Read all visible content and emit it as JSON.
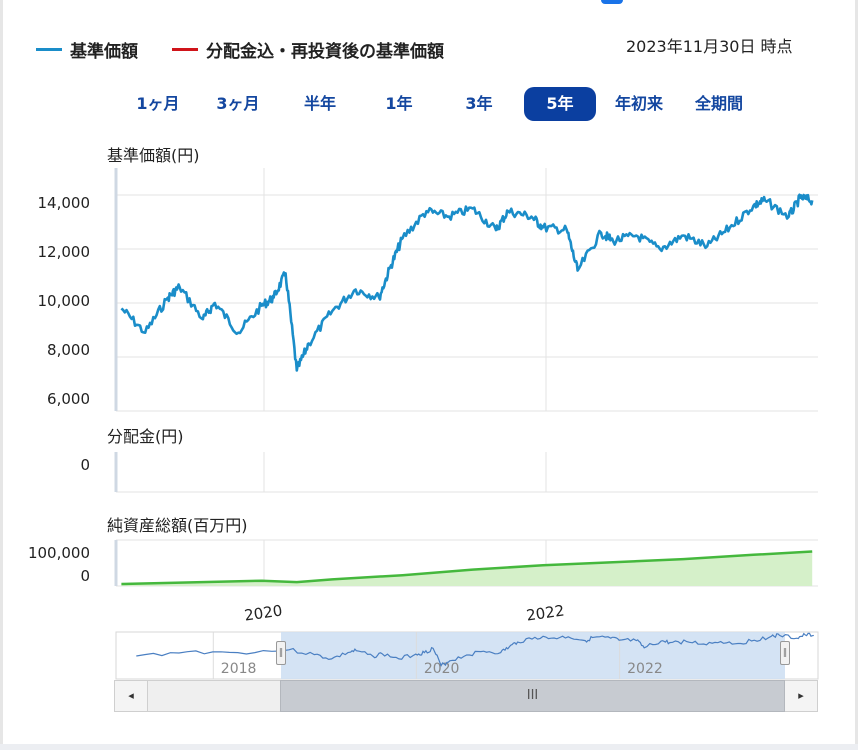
{
  "legend": {
    "nav_label": "基準価額",
    "nav_color": "#1a8dc9",
    "reinvested_label": "分配金込・再投資後の基準価額",
    "reinvested_color": "#d0141a"
  },
  "as_of": "2023年11月30日 時点",
  "periods": [
    {
      "label": "1ヶ月",
      "active": false
    },
    {
      "label": "3ヶ月",
      "active": false
    },
    {
      "label": "半年",
      "active": false
    },
    {
      "label": "1年",
      "active": false
    },
    {
      "label": "3年",
      "active": false
    },
    {
      "label": "5年",
      "active": true
    },
    {
      "label": "年初来",
      "active": false
    },
    {
      "label": "全期間",
      "active": false
    }
  ],
  "panels": {
    "nav_title": "基準価額(円)",
    "dist_title": "分配金(円)",
    "assets_title": "純資産総額(百万円)"
  },
  "navigator": {
    "year_labels": [
      "2018",
      "2020",
      "2022"
    ],
    "thumb_icon": "III",
    "left_arrow_icon": "◂",
    "right_arrow_icon": "▸"
  },
  "chart_data": [
    {
      "type": "line",
      "name": "nav",
      "ylabel": "基準価額(円)",
      "ylim": [
        6000,
        15000
      ],
      "yticks": [
        "6,000",
        "8,000",
        "10,000",
        "12,000",
        "14,000"
      ],
      "x_tick_labels": [
        "2020",
        "2022"
      ],
      "x": [
        "2018-12",
        "2019-02",
        "2019-04",
        "2019-05",
        "2019-07",
        "2019-08",
        "2019-10",
        "2019-12",
        "2020-01",
        "2020-02",
        "2020-03",
        "2020-04",
        "2020-06",
        "2020-08",
        "2020-10",
        "2020-11",
        "2020-12",
        "2021-02",
        "2021-04",
        "2021-06",
        "2021-08",
        "2021-09",
        "2021-11",
        "2021-12",
        "2022-02",
        "2022-03",
        "2022-05",
        "2022-06",
        "2022-08",
        "2022-10",
        "2022-12",
        "2023-02",
        "2023-04",
        "2023-06",
        "2023-07",
        "2023-09",
        "2023-10",
        "2023-11"
      ],
      "series": [
        {
          "values": [
            9800,
            8900,
            10200,
            10600,
            9400,
            10000,
            8900,
            9900,
            10200,
            11100,
            7500,
            8500,
            9700,
            10500,
            10200,
            11400,
            12400,
            13400,
            13200,
            13500,
            12700,
            13400,
            13200,
            12800,
            12700,
            11200,
            12600,
            12300,
            12500,
            12000,
            12500,
            12100,
            12800,
            13600,
            13800,
            13200,
            13900,
            13800
          ]
        }
      ]
    },
    {
      "type": "bar",
      "name": "distribution",
      "ylabel": "分配金(円)",
      "yticks": [
        "0"
      ],
      "values": [
        0,
        0,
        0,
        0,
        0
      ]
    },
    {
      "type": "area",
      "name": "net_assets",
      "ylabel": "純資産総額(百万円)",
      "yticks": [
        "0",
        "100,000"
      ],
      "ylim": [
        0,
        140000
      ],
      "x": [
        "2018-12",
        "2019-06",
        "2019-12",
        "2020-03",
        "2020-06",
        "2020-12",
        "2021-06",
        "2021-12",
        "2022-06",
        "2022-12",
        "2023-06",
        "2023-11"
      ],
      "values": [
        6000,
        11000,
        16000,
        12000,
        20000,
        33000,
        50000,
        63000,
        72000,
        82000,
        95000,
        105000
      ]
    }
  ]
}
